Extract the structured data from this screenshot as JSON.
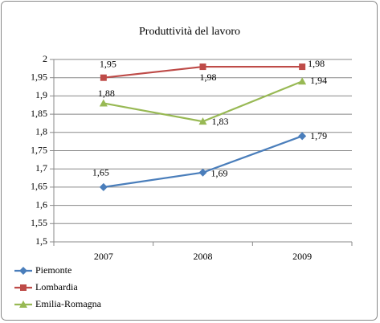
{
  "chart_data": {
    "type": "line",
    "title": "Produttività del lavoro",
    "categories": [
      "2007",
      "2008",
      "2009"
    ],
    "series": [
      {
        "name": "Piemonte",
        "color": "#4a7ebb",
        "marker": "diamond",
        "values": [
          1.65,
          1.69,
          1.79
        ],
        "value_labels": [
          "1,65",
          "1,69",
          "1,79"
        ]
      },
      {
        "name": "Lombardia",
        "color": "#be4b48",
        "marker": "square",
        "values": [
          1.95,
          1.98,
          1.98
        ],
        "value_labels": [
          "1,95",
          "1,98",
          "1,98"
        ]
      },
      {
        "name": "Emilia-Romagna",
        "color": "#98b954",
        "marker": "triangle",
        "values": [
          1.88,
          1.83,
          1.94
        ],
        "value_labels": [
          "1,88",
          "1,83",
          "1,94"
        ]
      }
    ],
    "ylim": [
      1.5,
      2
    ],
    "yticks": [
      {
        "value": 1.5,
        "label": "1,5"
      },
      {
        "value": 1.55,
        "label": "1,55"
      },
      {
        "value": 1.6,
        "label": "1,6"
      },
      {
        "value": 1.65,
        "label": "1,65"
      },
      {
        "value": 1.7,
        "label": "1,7"
      },
      {
        "value": 1.75,
        "label": "1,75"
      },
      {
        "value": 1.8,
        "label": "1,8"
      },
      {
        "value": 1.85,
        "label": "1,85"
      },
      {
        "value": 1.9,
        "label": "1,9"
      },
      {
        "value": 1.95,
        "label": "1,95"
      },
      2
    ],
    "grid": true,
    "legend": "bottom-left"
  }
}
